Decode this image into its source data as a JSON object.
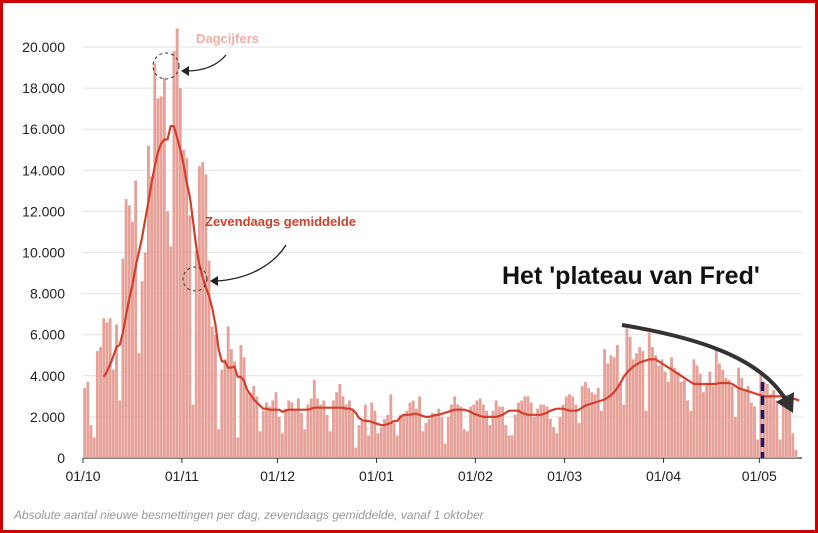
{
  "chart_data": {
    "type": "bar",
    "annotation_title": "Het 'plateau van Fred'",
    "caption": "Absolute aantal nieuwe besmettingen per dag, zevendaags gemiddelde, vanaf 1 oktober",
    "legend_labels": {
      "daily": "Dagcijfers",
      "average": "Zevendaags gemiddelde"
    },
    "colors": {
      "bars": "#e6a198",
      "line": "#d2402c",
      "frame": "#cc0000",
      "marker": "#1a1a6e"
    },
    "ylim": [
      0,
      20000
    ],
    "yticks": [
      "0",
      "2.000",
      "4.000",
      "6.000",
      "8.000",
      "10.000",
      "12.000",
      "14.000",
      "16.000",
      "18.000",
      "20.000"
    ],
    "xticks": [
      "01/10",
      "01/11",
      "01/12",
      "01/01",
      "01/02",
      "01/03",
      "01/04",
      "01/05"
    ],
    "start_label": "01/10",
    "vertical_marker_day": 213,
    "series": [
      {
        "kind": "bars",
        "values": [
          3400,
          3700,
          1600,
          1000,
          5200,
          5400,
          6800,
          6600,
          6800,
          4300,
          6500,
          2800,
          9700,
          12600,
          12300,
          11500,
          13500,
          5100,
          8600,
          10000,
          15200,
          13700,
          19200,
          17500,
          17600,
          18500,
          12000,
          10300,
          19800,
          20900,
          18000,
          15000,
          14600,
          11800,
          2600,
          10100,
          14200,
          14400,
          13800,
          9600,
          6400,
          6000,
          1400,
          4300,
          4800,
          6400,
          5300,
          4700,
          1000,
          5500,
          4900,
          3200,
          3100,
          3500,
          3000,
          1300,
          2300,
          2700,
          2500,
          2800,
          3200,
          2000,
          1200,
          2400,
          2800,
          2700,
          2400,
          2900,
          2200,
          1400,
          2600,
          2900,
          3800,
          2900,
          2600,
          2800,
          2100,
          1300,
          2800,
          3200,
          3600,
          3000,
          2600,
          2800,
          2400,
          500,
          1600,
          1800,
          2600,
          1100,
          2700,
          2300,
          1200,
          1500,
          1900,
          2100,
          3100,
          1700,
          1100,
          2100,
          2100,
          2300,
          2700,
          2800,
          2400,
          3000,
          1300,
          1700,
          1900,
          2200,
          2100,
          2400,
          2000,
          700,
          2000,
          2600,
          3000,
          2600,
          2500,
          1400,
          1300,
          2500,
          2600,
          2800,
          2900,
          2600,
          2300,
          1600,
          2300,
          2800,
          2500,
          2500,
          1600,
          1100,
          1100,
          2100,
          2700,
          2800,
          3000,
          3000,
          2700,
          2000,
          2400,
          2600,
          2600,
          2500,
          1900,
          1500,
          1200,
          2000,
          2600,
          3000,
          3100,
          3000,
          2600,
          1700,
          3500,
          3700,
          3400,
          3200,
          3100,
          3400,
          2300,
          5300,
          4600,
          5000,
          4900,
          5500,
          3600,
          2600,
          6300,
          5900,
          4800,
          5100,
          5400,
          5200,
          2300,
          6100,
          5400,
          5000,
          4500,
          4800,
          4200,
          3700,
          4900,
          4400,
          4200,
          3700,
          3800,
          2800,
          2300,
          4800,
          4500,
          4100,
          3200,
          3600,
          4200,
          3500,
          5300,
          4600,
          4300,
          3900,
          3800,
          3500,
          2000,
          4400,
          3900,
          3300,
          3500,
          2700,
          2500,
          900,
          4200,
          3700,
          3600,
          3100,
          3300,
          2800,
          900,
          3100,
          3000,
          2700,
          1200,
          400
        ]
      },
      {
        "kind": "line",
        "values": [
          null,
          null,
          null,
          null,
          null,
          null,
          3950,
          4200,
          4550,
          4950,
          5400,
          5500,
          6100,
          6950,
          7750,
          8400,
          9300,
          10000,
          10700,
          11600,
          12450,
          13400,
          14200,
          14900,
          15300,
          15500,
          15500,
          16150,
          16150,
          15600,
          15000,
          14300,
          13400,
          12700,
          11500,
          10300,
          9400,
          8800,
          8300,
          7900,
          7300,
          6500,
          5300,
          4700,
          4700,
          4400,
          4400,
          4450,
          3950,
          3950,
          3750,
          3300,
          3100,
          2850,
          2700,
          2550,
          2400,
          2400,
          2350,
          2350,
          2350,
          2350,
          2250,
          2300,
          2350,
          2350,
          2350,
          2350,
          2350,
          2350,
          2350,
          2400,
          2450,
          2450,
          2450,
          2450,
          2450,
          2450,
          2450,
          2450,
          2450,
          2450,
          2400,
          2400,
          2350,
          2200,
          1950,
          1850,
          1800,
          1800,
          1750,
          1700,
          1650,
          1600,
          1600,
          1650,
          1700,
          1800,
          1800,
          2000,
          2100,
          2100,
          2100,
          2150,
          2150,
          2100,
          2050,
          2000,
          2000,
          2050,
          2100,
          2100,
          2150,
          2200,
          2250,
          2300,
          2350,
          2350,
          2350,
          2350,
          2300,
          2250,
          2150,
          2100,
          2050,
          2000,
          2000,
          2000,
          2000,
          2000,
          2050,
          2100,
          2200,
          2300,
          2300,
          2300,
          2300,
          2200,
          2150,
          2100,
          2100,
          2100,
          2100,
          2100,
          2150,
          2200,
          2300,
          2350,
          2400,
          2400,
          2400,
          2350,
          2300,
          2300,
          2300,
          2350,
          2450,
          2550,
          2600,
          2650,
          2700,
          2750,
          2800,
          2850,
          2950,
          3050,
          3200,
          3400,
          3650,
          3950,
          4150,
          4300,
          4450,
          4550,
          4650,
          4700,
          4750,
          4800,
          4800,
          4800,
          4700,
          4600,
          4500,
          4400,
          4300,
          4200,
          4100,
          4000,
          3900,
          3800,
          3700,
          3600,
          3600,
          3600,
          3600,
          3600,
          3600,
          3600,
          3600,
          3650,
          3650,
          3650,
          3650,
          3600,
          3500,
          3400,
          3350,
          3300,
          3250,
          3200,
          3150,
          3100,
          3050,
          3000,
          3000,
          3000,
          3000,
          3000,
          3000,
          3000,
          3000,
          2950,
          2900,
          2850,
          2800
        ]
      }
    ]
  }
}
